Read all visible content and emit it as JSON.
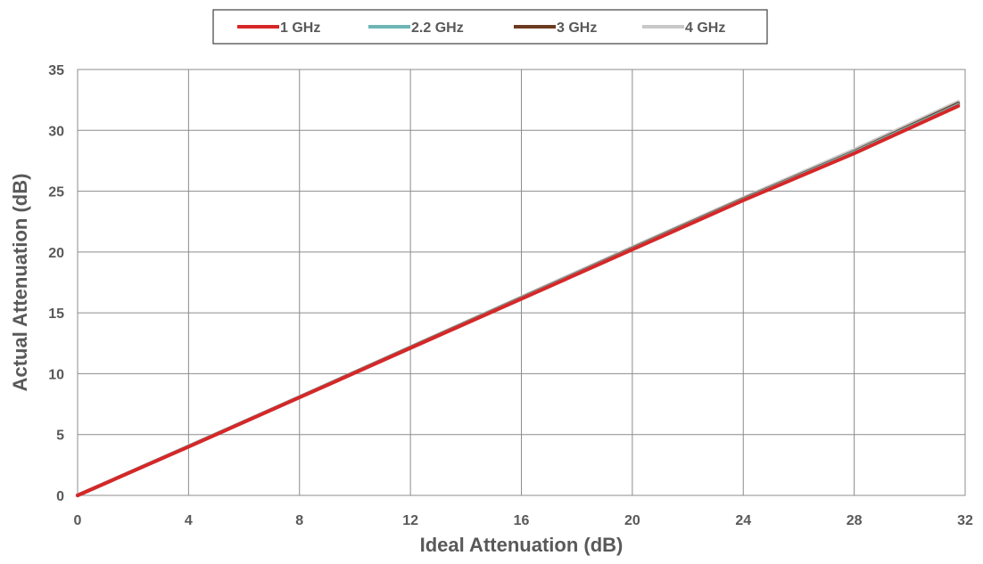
{
  "chart_data": {
    "type": "line",
    "title": "",
    "xlabel": "Ideal Attenuation (dB)",
    "ylabel": "Actual Attenuation (dB)",
    "xlim": [
      0,
      32
    ],
    "ylim": [
      0,
      35
    ],
    "xticks": [
      0,
      4,
      8,
      12,
      16,
      20,
      24,
      28,
      32
    ],
    "yticks": [
      0,
      5,
      10,
      15,
      20,
      25,
      30,
      35
    ],
    "grid": true,
    "legend_position": "top",
    "series": [
      {
        "name": "1 GHz",
        "color": "#d62728",
        "x": [
          0,
          4,
          8,
          12,
          16,
          20,
          24,
          28,
          31.75
        ],
        "y": [
          0,
          4.0,
          8.05,
          12.1,
          16.15,
          20.2,
          24.25,
          28.1,
          32.0
        ]
      },
      {
        "name": "2.2 GHz",
        "color": "#6fb5b5",
        "x": [
          0,
          4,
          8,
          12,
          16,
          20,
          24,
          28,
          31.75
        ],
        "y": [
          0,
          4.02,
          8.07,
          12.12,
          16.2,
          20.25,
          24.3,
          28.2,
          32.1
        ]
      },
      {
        "name": "3 GHz",
        "color": "#6b3a1f",
        "x": [
          0,
          4,
          8,
          12,
          16,
          20,
          24,
          28,
          31.75
        ],
        "y": [
          0,
          4.02,
          8.08,
          12.15,
          16.22,
          20.3,
          24.35,
          28.25,
          32.2
        ]
      },
      {
        "name": "4 GHz",
        "color": "#c8c8c8",
        "x": [
          0,
          4,
          8,
          12,
          16,
          20,
          24,
          28,
          31.75
        ],
        "y": [
          0,
          4.05,
          8.1,
          12.2,
          16.3,
          20.4,
          24.45,
          28.4,
          32.35
        ]
      }
    ]
  }
}
